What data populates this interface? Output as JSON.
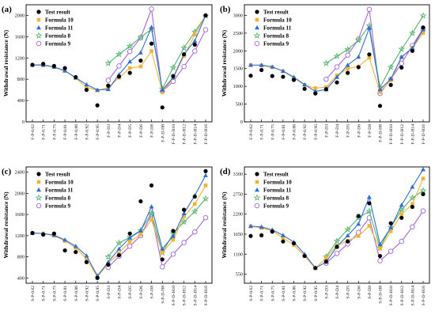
{
  "figure": {
    "ylabel": "Withdrawal resistance (N)",
    "legend": [
      "Test result",
      "Formula 10",
      "Formula 11",
      "Formula 8",
      "Formula 9"
    ],
    "legend_placement": "top-left"
  },
  "series_style": [
    {
      "name": "Test result",
      "color": "#000000",
      "marker": "circle-filled"
    },
    {
      "name": "Formula 10",
      "color": "#f5b335",
      "marker": "square"
    },
    {
      "name": "Formula 11",
      "color": "#2f6fd1",
      "marker": "triangle"
    },
    {
      "name": "Formula 8",
      "color": "#52b36b",
      "marker": "star"
    },
    {
      "name": "Formula 9",
      "color": "#a566d8",
      "marker": "circle-open"
    }
  ],
  "chart_data": [
    {
      "panel": "(a)",
      "type": "line",
      "ylim": [
        0,
        2200
      ],
      "yticks": [
        0,
        400,
        800,
        1200,
        1600,
        2000
      ],
      "categories": [
        "F-P-0.62",
        "F-P-0.71",
        "F-P-0.75",
        "F-P-0.81",
        "F-P-0.86",
        "F-P-0.92",
        "F-P-0.95",
        "F-P-D3",
        "F-P-D4",
        "F-P-D5",
        "F-P-D6",
        "F-P-D8",
        "F-P-D-H8",
        "F-P-D-H10",
        "F-P-D-H12",
        "F-P-D-H14",
        "F-P-D-H16"
      ],
      "series": [
        {
          "name": "Test result",
          "values": [
            1070,
            1090,
            1050,
            1010,
            840,
            600,
            310,
            680,
            850,
            920,
            1150,
            1470,
            270,
            860,
            1270,
            1450,
            2000
          ]
        },
        {
          "name": "Formula 10",
          "values": [
            1070,
            1060,
            1030,
            960,
            820,
            650,
            590,
            640,
            830,
            1010,
            1040,
            1330,
            560,
            820,
            1240,
            1640,
            1990
          ]
        },
        {
          "name": "Formula 11",
          "values": [
            1070,
            1070,
            1030,
            960,
            830,
            700,
            600,
            610,
            890,
            1130,
            1300,
            1780,
            600,
            830,
            1270,
            1520,
            2000
          ]
        },
        {
          "name": "Formula 8",
          "values": null
        },
        {
          "name": "Formula 9",
          "values": null
        }
      ],
      "series_f8": {
        "x_start": 7,
        "values": [
          1100,
          1270,
          1420,
          1590,
          1740,
          620,
          1020,
          1390,
          1690,
          1990
        ]
      },
      "series_f9": {
        "x_start": 7,
        "values": [
          780,
          1050,
          1320,
          1580,
          2120,
          570,
          760,
          1040,
          1330,
          1730
        ]
      }
    },
    {
      "panel": "(b)",
      "type": "line",
      "ylim": [
        0,
        3300
      ],
      "yticks": [
        0,
        500,
        1000,
        1500,
        2000,
        2500,
        3000
      ],
      "categories": [
        "F-P-0.62",
        "F-P-0.71",
        "F-P-0.75",
        "F-P-0.81",
        "F-P-0.86",
        "F-P-0.92",
        "F-P-0.95",
        "F-P-D3",
        "F-P-D4",
        "F-P-D5",
        "F-P-D6",
        "F-P-D8",
        "F-P-D-H8",
        "F-P-D-H10",
        "F-P-D-H12",
        "F-P-D-H14",
        "F-P-D-H16"
      ],
      "series": [
        {
          "name": "Test result",
          "values": [
            1300,
            1460,
            1290,
            1270,
            1180,
            930,
            800,
            920,
            1110,
            1380,
            1540,
            1900,
            450,
            1040,
            1530,
            2000,
            2660
          ]
        },
        {
          "name": "Formula 10",
          "values": [
            1600,
            1590,
            1540,
            1430,
            1240,
            1040,
            950,
            980,
            1310,
            1500,
            1560,
            1810,
            840,
            1170,
            1820,
            2090,
            2500
          ]
        },
        {
          "name": "Formula 11",
          "values": [
            1600,
            1600,
            1550,
            1430,
            1260,
            1050,
            860,
            910,
            1260,
            1600,
            1830,
            2640,
            910,
            1210,
            1830,
            2080,
            2600
          ]
        },
        {
          "name": "Formula 8",
          "values": null
        },
        {
          "name": "Formula 9",
          "values": null
        }
      ],
      "series_f8": {
        "x_start": 7,
        "values": [
          1650,
          1850,
          2040,
          2300,
          2710,
          970,
          1540,
          2050,
          2500,
          2990
        ]
      },
      "series_f9": {
        "x_start": 7,
        "values": [
          1200,
          1550,
          1880,
          2330,
          3170,
          800,
          1200,
          1650,
          2150,
          2620
        ]
      }
    },
    {
      "panel": "(c)",
      "type": "line",
      "ylim": [
        300,
        2500
      ],
      "yticks": [
        400,
        800,
        1200,
        1600,
        2000,
        2400
      ],
      "categories": [
        "S-P-0.62",
        "S-P-0.71",
        "S-P-0.75",
        "S-P-0.81",
        "S-P-0.86",
        "S-P-0.92",
        "S-P-0.95",
        "S-P-D3",
        "S-P-D4",
        "S-P-D5",
        "S-P-D6",
        "S-P-D8",
        "S-P-D-H8",
        "S-P-D-H10",
        "S-P-D-H12",
        "S-P-D-H14",
        "S-P-D-H16"
      ],
      "series": [
        {
          "name": "Test result",
          "values": [
            1250,
            1220,
            1240,
            920,
            890,
            700,
            400,
            650,
            830,
            1240,
            1850,
            2150,
            750,
            1290,
            1690,
            1940,
            2420
          ]
        },
        {
          "name": "Formula 10",
          "values": [
            1250,
            1240,
            1200,
            1100,
            970,
            760,
            420,
            670,
            870,
            1090,
            1220,
            1500,
            880,
            1120,
            1560,
            1800,
            2150
          ]
        },
        {
          "name": "Formula 11",
          "values": [
            1250,
            1240,
            1210,
            1120,
            1000,
            820,
            440,
            700,
            950,
            1160,
            1290,
            1750,
            950,
            1190,
            1620,
            1960,
            2340
          ]
        },
        {
          "name": "Formula 8",
          "values": null
        },
        {
          "name": "Formula 9",
          "values": null
        }
      ],
      "series_f8": {
        "x_start": 7,
        "values": [
          800,
          1060,
          1170,
          1300,
          1620,
          880,
          1240,
          1460,
          1660,
          1900
        ]
      },
      "series_f9": {
        "x_start": 7,
        "values": [
          600,
          810,
          1000,
          1200,
          1600,
          610,
          850,
          1070,
          1270,
          1540
        ]
      }
    },
    {
      "panel": "(d)",
      "type": "line",
      "ylim": [
        300,
        3500
      ],
      "yticks": [
        550,
        1100,
        1650,
        2200,
        2750,
        3300
      ],
      "categories": [
        "S-P-0.62",
        "S-P-0.71",
        "S-P-0.75",
        "S-P-0.81",
        "S-P-0.86",
        "S-P-0.92",
        "S-P-0.95",
        "S-P-D3",
        "S-P-D4",
        "S-P-D5",
        "S-P-D6",
        "S-P-D8",
        "S-P-D-H8",
        "S-P-D-H10",
        "S-P-D-H12",
        "S-P-D-H14",
        "S-P-D-H16"
      ],
      "series": [
        {
          "name": "Test result",
          "values": [
            1600,
            1620,
            1720,
            1450,
            1400,
            1050,
            720,
            900,
            1300,
            1450,
            2150,
            2500,
            1050,
            1950,
            2100,
            2400,
            2750
          ]
        },
        {
          "name": "Formula 10",
          "values": [
            1870,
            1820,
            1740,
            1550,
            1350,
            1050,
            710,
            1000,
            1340,
            1470,
            1600,
            1880,
            1250,
            1730,
            2200,
            2480,
            3180
          ]
        },
        {
          "name": "Formula 11",
          "values": [
            1870,
            1850,
            1770,
            1620,
            1430,
            1100,
            720,
            880,
            1310,
            1610,
            1930,
            2670,
            1370,
            1830,
            2450,
            2950,
            3430
          ]
        },
        {
          "name": "Formula 8",
          "values": null
        },
        {
          "name": "Formula 9",
          "values": null
        }
      ],
      "series_f8": {
        "x_start": 7,
        "values": [
          1030,
          1460,
          1780,
          2100,
          2280,
          1280,
          1840,
          2320,
          2650,
          2850
        ]
      },
      "series_f9": {
        "x_start": 7,
        "values": [
          850,
          1120,
          1380,
          1700,
          2100,
          920,
          1180,
          1450,
          1850,
          2290
        ]
      }
    }
  ]
}
